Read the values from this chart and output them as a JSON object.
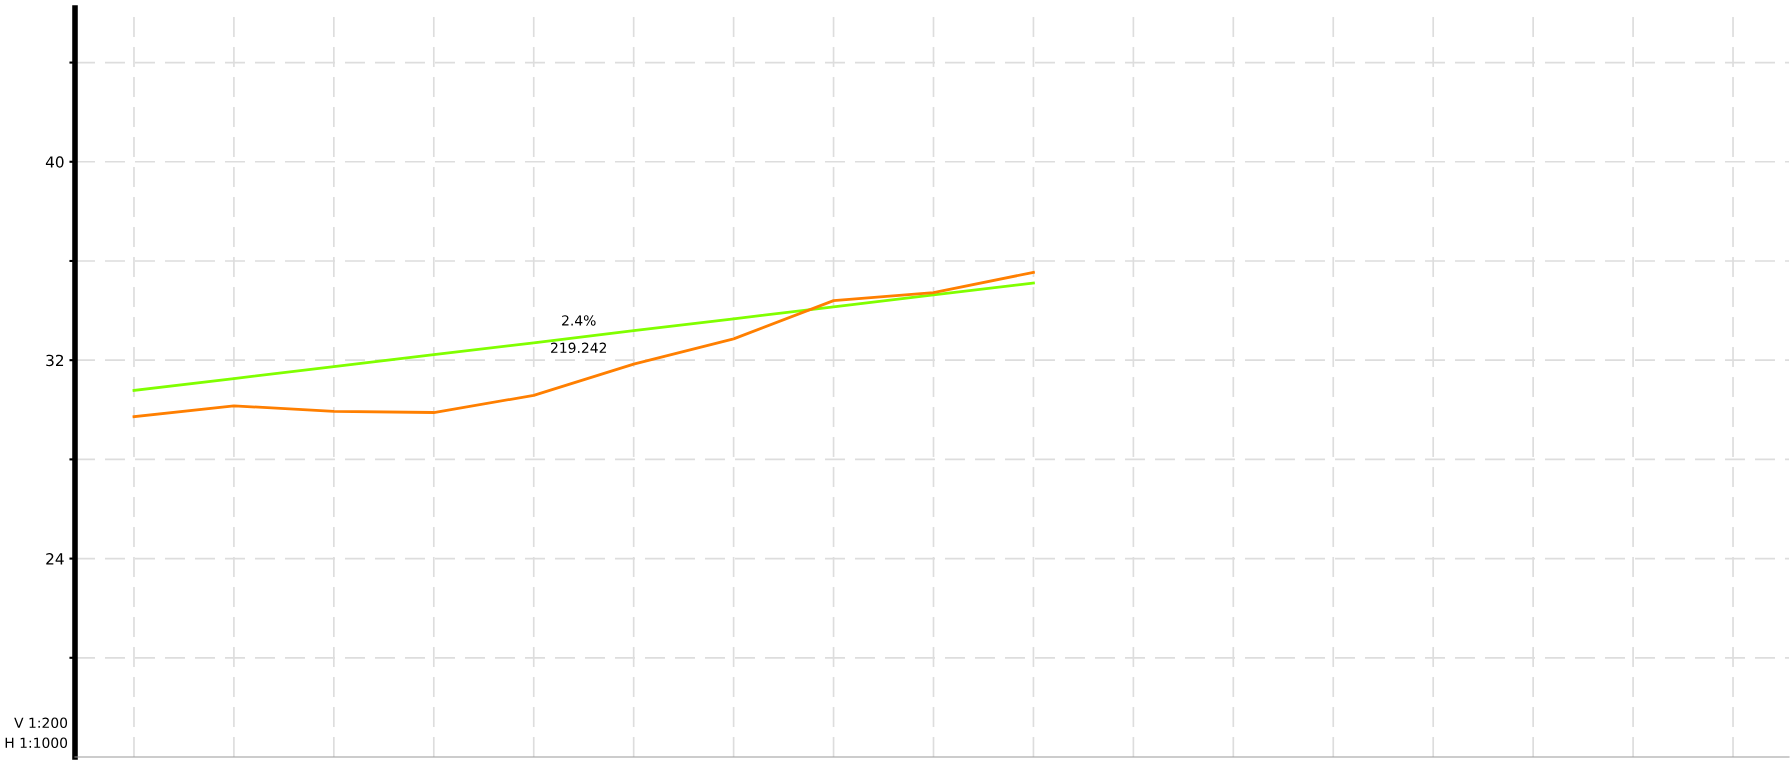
{
  "chart_data": {
    "type": "line",
    "categories": [
      null,
      null,
      null,
      null,
      null,
      null,
      null,
      null,
      null,
      null,
      null,
      null,
      null,
      null,
      null,
      null,
      null
    ],
    "series": [
      {
        "color": "#80ff00",
        "values": [
          30.78,
          31.26,
          31.74,
          32.22,
          32.7,
          33.19,
          33.67,
          34.15,
          34.63,
          35.11,
          null,
          null,
          null,
          null,
          null,
          null,
          null
        ]
      },
      {
        "color": "#ff7f00",
        "values": [
          29.72,
          30.16,
          29.94,
          29.89,
          30.58,
          31.84,
          32.86,
          34.4,
          34.72,
          35.54,
          null,
          null,
          null,
          null,
          null,
          null,
          null
        ]
      }
    ],
    "ylim": [
      16,
      46.2
    ],
    "yticks": [
      {
        "value": 20,
        "label": null
      },
      24,
      {
        "value": 28,
        "label": null
      },
      32,
      {
        "value": 36,
        "label": null
      },
      40,
      {
        "value": 44,
        "label": null
      }
    ],
    "grid": true,
    "line_style": "solid",
    "marker": "none",
    "tick_labels": "y",
    "annotations": [
      "2.4%",
      "219.242",
      "V 1:200",
      "H 1:1000"
    ]
  }
}
